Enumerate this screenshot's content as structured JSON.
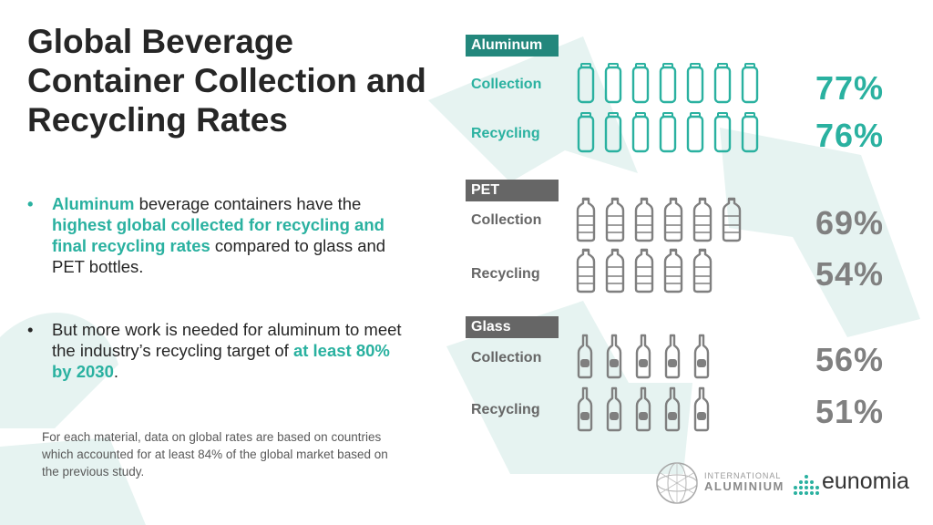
{
  "title": "Global Beverage Container Collection and Recycling Rates",
  "bullets": [
    {
      "parts": [
        {
          "text": "Aluminum",
          "hl": true
        },
        {
          "text": " beverage containers have the ",
          "hl": false
        },
        {
          "text": "highest global collected for recycling and final recycling rates",
          "hl": true
        },
        {
          "text": " compared to glass and PET bottles.",
          "hl": false
        }
      ]
    },
    {
      "parts": [
        {
          "text": "But more work is needed for aluminum to meet the industry’s recycling target of ",
          "hl": false
        },
        {
          "text": "at least 80% by 2030",
          "hl": true
        },
        {
          "text": ".",
          "hl": false
        }
      ]
    }
  ],
  "bullet_glyph": "•",
  "footnote": "For each material, data on global rates are based on countries which accounted for at least 84% of the global market based on the previous study.",
  "logos": {
    "international_aluminium": {
      "small": "INTERNATIONAL",
      "big": "ALUMINIUM"
    },
    "eunomia": "eunomia"
  },
  "colors": {
    "teal": "#2ab1a0",
    "teal_dark": "#23877c",
    "gray": "#7f7f7f",
    "gray_text": "#808080",
    "gray_badge": "#666666",
    "bg_arrow": "#e6f3f1"
  },
  "chart_data": {
    "type": "pictogram",
    "unit": "%",
    "icon_unit_percent": 10,
    "materials": [
      {
        "name": "Aluminum",
        "icon": "can-icon",
        "rows": [
          {
            "label": "Collection",
            "value": 77,
            "display": "77%"
          },
          {
            "label": "Recycling",
            "value": 76,
            "display": "76%"
          }
        ]
      },
      {
        "name": "PET",
        "icon": "plastic-bottle-icon",
        "rows": [
          {
            "label": "Collection",
            "value": 69,
            "display": "69%"
          },
          {
            "label": "Recycling",
            "value": 54,
            "display": "54%"
          }
        ]
      },
      {
        "name": "Glass",
        "icon": "glass-bottle-icon",
        "rows": [
          {
            "label": "Collection",
            "value": 56,
            "display": "56%"
          },
          {
            "label": "Recycling",
            "value": 51,
            "display": "51%"
          }
        ]
      }
    ]
  }
}
